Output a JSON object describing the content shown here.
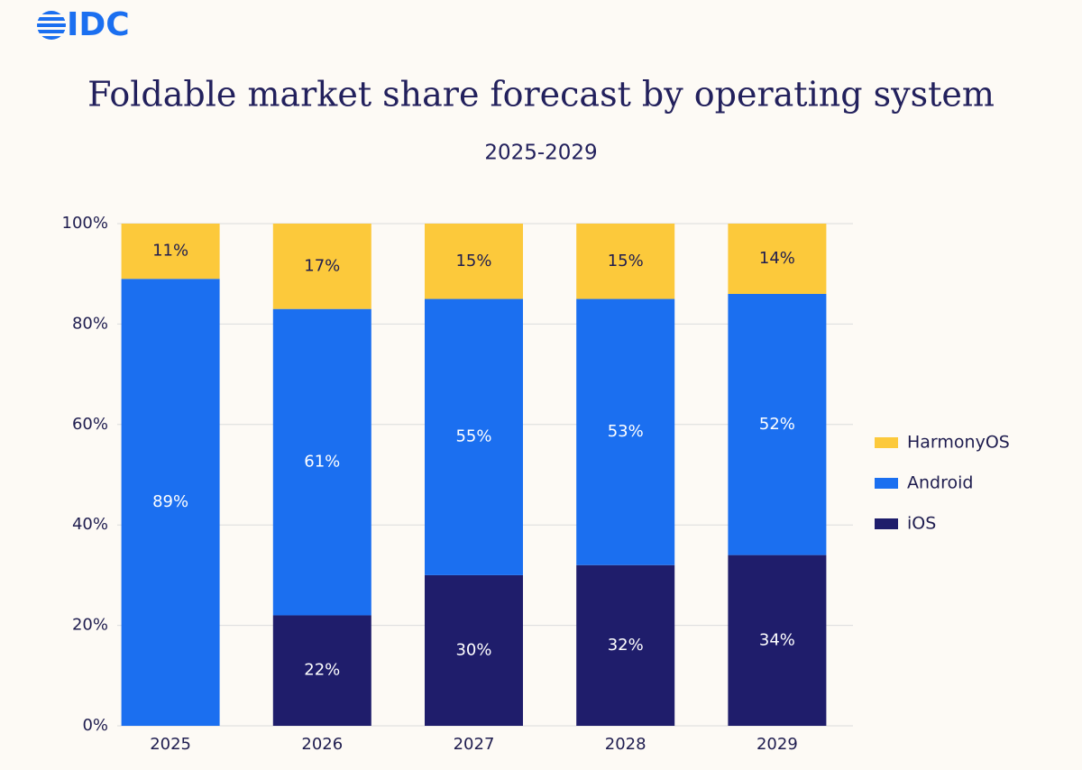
{
  "logo": "IDC",
  "chart_data": {
    "type": "stacked_bar",
    "title": "Foldable market share forecast by operating system",
    "subtitle": "2025-2029",
    "categories": [
      "2025",
      "2026",
      "2027",
      "2028",
      "2029"
    ],
    "series": [
      {
        "name": "iOS",
        "color": "#1f1d6b",
        "label_color": "#ffffff",
        "values": [
          0,
          22,
          30,
          32,
          34
        ],
        "value_labels": [
          null,
          "22%",
          "30%",
          "32%",
          "34%"
        ]
      },
      {
        "name": "Android",
        "color": "#1b6ff0",
        "label_color": "#ffffff",
        "values": [
          89,
          61,
          55,
          53,
          52
        ],
        "value_labels": [
          "89%",
          "61%",
          "55%",
          "53%",
          "52%"
        ]
      },
      {
        "name": "HarmonyOS",
        "color": "#fcc93b",
        "label_color": "#1f1d4f",
        "values": [
          11,
          17,
          15,
          15,
          14
        ],
        "value_labels": [
          "11%",
          "17%",
          "15%",
          "15%",
          "14%"
        ]
      }
    ],
    "ylim": [
      0,
      100
    ],
    "yticks": [
      {
        "value": 0,
        "label": "0%"
      },
      {
        "value": 20,
        "label": "20%"
      },
      {
        "value": 40,
        "label": "40%"
      },
      {
        "value": 60,
        "label": "60%"
      },
      {
        "value": 80,
        "label": "80%"
      },
      {
        "value": 100,
        "label": "100%"
      }
    ],
    "grid": true,
    "legend": "right"
  }
}
